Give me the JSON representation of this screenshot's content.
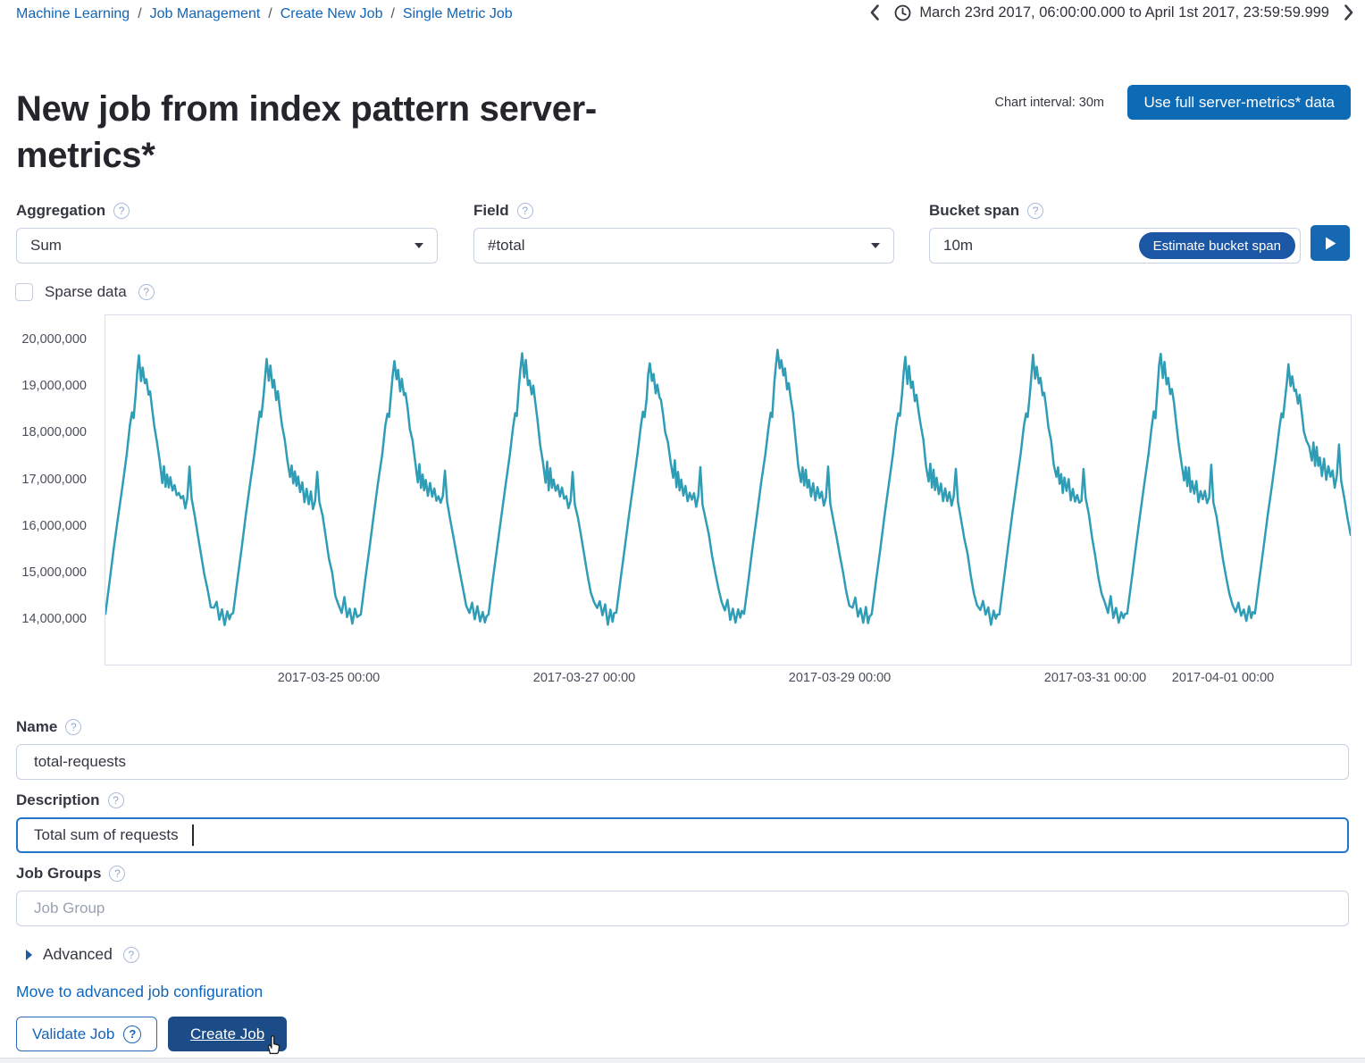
{
  "breadcrumb": {
    "items": [
      "Machine Learning",
      "Job Management",
      "Create New Job",
      "Single Metric Job"
    ],
    "separator": "/"
  },
  "timebar": {
    "range": "March 23rd 2017, 06:00:00.000 to April 1st 2017, 23:59:59.999"
  },
  "header": {
    "title": "New job from index pattern server-metrics*",
    "chart_interval_label": "Chart interval: 30m",
    "use_full_data_button": "Use full server-metrics* data"
  },
  "form": {
    "aggregation": {
      "label": "Aggregation",
      "value": "Sum"
    },
    "field": {
      "label": "Field",
      "value": "#total"
    },
    "bucket_span": {
      "label": "Bucket span",
      "value": "10m",
      "estimate_button": "Estimate bucket span"
    },
    "sparse_data": {
      "label": "Sparse data",
      "checked": false
    },
    "name": {
      "label": "Name",
      "value": "total-requests"
    },
    "description": {
      "label": "Description",
      "value": "Total sum of requests"
    },
    "job_groups": {
      "label": "Job Groups",
      "placeholder": "Job Group"
    },
    "advanced": {
      "label": "Advanced"
    },
    "move_link": "Move to advanced job configuration",
    "validate_button": "Validate Job",
    "create_button": "Create Job"
  },
  "colors": {
    "link_blue": "#1065b8",
    "primary_button_blue": "#0d6ab5",
    "estimate_button_blue": "#1c57a5",
    "create_button_blue": "#1b4c88",
    "chart_line_teal": "#2f9db6",
    "input_border": "#c9d1e6",
    "focus_border": "#2077c9"
  },
  "icons": {
    "chevron-left-icon": "‹",
    "chevron-right-icon": "›",
    "clock-icon": "circled clock",
    "help-icon": "circled question mark",
    "caret-down-icon": "solid down triangle",
    "play-icon": "solid right triangle",
    "disclosure-triangle-icon": "solid right triangle",
    "mouse-cursor": "pointing hand"
  },
  "chart_data": {
    "type": "line",
    "x_axis_start": "2017-03-23 06:00",
    "x_axis_end": "2017-04-02 00:00",
    "x_range_days": 9.75,
    "x_ticks": [
      {
        "label": "2017-03-25 00:00",
        "days_from_start": 1.75
      },
      {
        "label": "2017-03-27 00:00",
        "days_from_start": 3.75
      },
      {
        "label": "2017-03-29 00:00",
        "days_from_start": 5.75
      },
      {
        "label": "2017-03-31 00:00",
        "days_from_start": 7.75
      },
      {
        "label": "2017-04-01 00:00",
        "days_from_start": 8.75
      }
    ],
    "y_ticks": [
      {
        "label": "20,000,000",
        "millions": 20
      },
      {
        "label": "19,000,000",
        "millions": 19
      },
      {
        "label": "18,000,000",
        "millions": 18
      },
      {
        "label": "17,000,000",
        "millions": 17
      },
      {
        "label": "16,000,000",
        "millions": 16
      },
      {
        "label": "15,000,000",
        "millions": 15
      },
      {
        "label": "14,000,000",
        "millions": 14
      }
    ],
    "ylim_millions": [
      13.05,
      20.53
    ],
    "grid": false,
    "legend": false,
    "line_color": "#2f9db6",
    "num_days": 10,
    "daily_pattern": {
      "hours_after_0600": [
        0,
        0.8,
        1.6,
        2.4,
        3.2,
        4,
        4.6,
        5,
        5.3,
        5.7,
        6,
        6.3,
        6.7,
        7,
        7.4,
        7.7,
        8.1,
        8.4,
        8.8,
        9.2,
        9.7,
        10.2,
        10.7,
        11,
        11.3,
        11.6,
        11.9,
        12.2,
        12.6,
        13,
        13.4,
        13.8,
        14.2,
        14.6,
        15,
        15.4,
        15.8,
        16.2,
        16.8,
        17.4,
        18,
        18.6,
        19.2,
        19.8,
        20.4,
        20.9,
        21.4,
        21.9,
        22.4,
        22.9,
        23.3,
        23.6
      ],
      "values_millions": [
        14.15,
        14.85,
        15.55,
        16.25,
        16.9,
        17.55,
        18.15,
        18.45,
        18.35,
        18.9,
        19.3,
        19.65,
        19.15,
        19.45,
        19,
        19.15,
        18.8,
        18.9,
        18.55,
        18.2,
        17.8,
        17.35,
        17,
        17.35,
        16.85,
        17.2,
        16.8,
        17.05,
        16.7,
        16.95,
        16.6,
        16.8,
        16.55,
        16.7,
        16.45,
        16.6,
        17.25,
        16.55,
        16.2,
        15.8,
        15.35,
        14.95,
        14.6,
        14.35,
        14.2,
        14.45,
        14.05,
        14.3,
        13.95,
        14.25,
        14,
        14.15
      ]
    },
    "day_peak_offsets_millions": [
      0,
      -0.05,
      -0.05,
      0.05,
      -0.1,
      0.2,
      -0.05,
      0,
      0.1,
      -0.15
    ],
    "day_tail_offsets_millions": [
      0,
      0,
      0,
      0,
      0,
      0,
      0,
      0,
      0,
      0.45
    ]
  }
}
